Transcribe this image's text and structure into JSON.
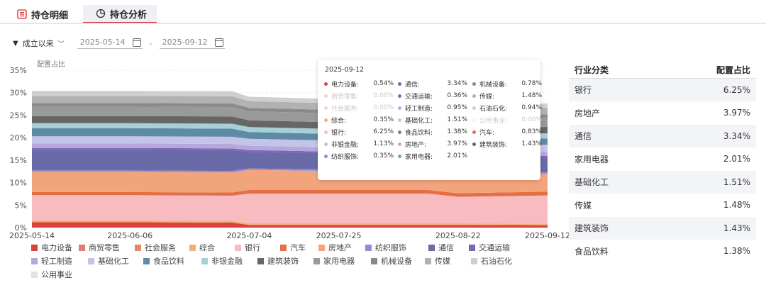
{
  "tabs": [
    {
      "label": "持仓明细",
      "icon": "list-icon"
    },
    {
      "label": "持仓分析",
      "icon": "pie-chart-icon"
    }
  ],
  "filters": {
    "range_label": "成立以来",
    "start_date": "2025-05-14",
    "date_separator": "-",
    "end_date": "2025-09-12"
  },
  "chart_data": {
    "type": "area",
    "stacked": true,
    "ylabel": "配置占比",
    "ylim": [
      0,
      35
    ],
    "yticks": [
      "0%",
      "5%",
      "10%",
      "15%",
      "20%",
      "25%",
      "30%",
      "35%"
    ],
    "xticks": [
      "2025-05-14",
      "2025-06-06",
      "2025-07-04",
      "2025-07-25",
      "2025-08-22",
      "2025-09-12"
    ],
    "x": [
      "2025-05-14",
      "2025-06-06",
      "2025-06-30",
      "2025-07-04",
      "2025-07-25",
      "2025-08-15",
      "2025-08-22",
      "2025-09-12"
    ],
    "grid": true,
    "legend_position": "bottom",
    "series": [
      {
        "name": "电力设备",
        "color": "#d9433f",
        "values": [
          1.2,
          1.2,
          1.1,
          0.6,
          0.6,
          0.6,
          0.6,
          0.54
        ]
      },
      {
        "name": "商贸零售",
        "color": "#e07b78",
        "values": [
          0,
          0,
          0,
          0,
          0,
          0,
          0,
          0
        ]
      },
      {
        "name": "社会服务",
        "color": "#e58a5f",
        "values": [
          0,
          0,
          0,
          0,
          0,
          0,
          0,
          0
        ]
      },
      {
        "name": "综合",
        "color": "#f1b07a",
        "values": [
          0.4,
          0.4,
          0.4,
          0.35,
          0.35,
          0.35,
          0.35,
          0.35
        ]
      },
      {
        "name": "银行",
        "color": "#f8bcc0",
        "values": [
          5.6,
          5.6,
          5.6,
          6.6,
          6.6,
          6.6,
          5.9,
          6.25
        ]
      },
      {
        "name": "汽车",
        "color": "#e56f45",
        "values": [
          0.7,
          0.7,
          0.7,
          0.8,
          0.8,
          0.8,
          0.8,
          0.83
        ]
      },
      {
        "name": "房地产",
        "color": "#f2a57c",
        "values": [
          4.5,
          4.5,
          4.5,
          4.5,
          4.2,
          4.2,
          4.1,
          3.97
        ]
      },
      {
        "name": "纺织服饰",
        "color": "#8f8cd6",
        "values": [
          0.3,
          0.3,
          0.3,
          0.3,
          0.35,
          0.35,
          0.35,
          0.35
        ]
      },
      {
        "name": "通信",
        "color": "#6b6aa8",
        "values": [
          4.6,
          4.6,
          4.6,
          3.7,
          3.6,
          3.5,
          3.4,
          3.34
        ]
      },
      {
        "name": "交通运输",
        "color": "#7d66b8",
        "values": [
          0.4,
          0.4,
          0.4,
          0.4,
          0.36,
          0.36,
          0.36,
          0.36
        ]
      },
      {
        "name": "轻工制造",
        "color": "#b8a7dd",
        "values": [
          1,
          1,
          1,
          0.95,
          0.95,
          0.95,
          0.95,
          0.95
        ]
      },
      {
        "name": "基础化工",
        "color": "#c4c4e8",
        "values": [
          1.6,
          1.6,
          1.6,
          1.55,
          1.52,
          1.52,
          1.51,
          1.51
        ]
      },
      {
        "name": "食品饮料",
        "color": "#5d8aa4",
        "values": [
          1.8,
          1.8,
          1.8,
          1.5,
          1.45,
          1.4,
          1.38,
          1.38
        ]
      },
      {
        "name": "非银金融",
        "color": "#a9cfd6",
        "values": [
          1.1,
          1.1,
          1.1,
          1.1,
          1.13,
          1.13,
          1.13,
          1.13
        ]
      },
      {
        "name": "建筑装饰",
        "color": "#666666",
        "values": [
          1.6,
          1.6,
          1.6,
          1.5,
          1.45,
          1.43,
          1.43,
          1.43
        ]
      },
      {
        "name": "家用电器",
        "color": "#9a9a9a",
        "values": [
          2.1,
          2.1,
          2.1,
          2,
          2,
          2.01,
          2.01,
          2.01
        ]
      },
      {
        "name": "机械设备",
        "color": "#8a8a8a",
        "values": [
          0.8,
          0.8,
          0.8,
          0.78,
          0.78,
          0.78,
          0.78,
          0.78
        ]
      },
      {
        "name": "传媒",
        "color": "#b2b2b2",
        "values": [
          1.6,
          1.6,
          1.6,
          1.5,
          1.48,
          1.48,
          1.48,
          1.48
        ]
      },
      {
        "name": "石油石化",
        "color": "#cfcfcf",
        "values": [
          1.1,
          1.1,
          1.1,
          0.95,
          0.94,
          0.94,
          0.94,
          0.94
        ]
      },
      {
        "name": "公用事业",
        "color": "#e2e2e2",
        "values": [
          0,
          0,
          0,
          0,
          0,
          0,
          0,
          0
        ]
      }
    ]
  },
  "tooltip": {
    "date": "2025-09-12",
    "items": [
      {
        "name": "电力设备:",
        "value": "0.54%",
        "color": "#d9433f",
        "faded": false
      },
      {
        "name": "通信:",
        "value": "3.34%",
        "color": "#6b6aa8",
        "faded": false
      },
      {
        "name": "机械设备:",
        "value": "0.78%",
        "color": "#8a8a8a",
        "faded": false
      },
      {
        "name": "商贸零售:",
        "value": "0.00%",
        "color": "#e07b78",
        "faded": true
      },
      {
        "name": "交通运输:",
        "value": "0.36%",
        "color": "#7d66b8",
        "faded": false
      },
      {
        "name": "传媒:",
        "value": "1.48%",
        "color": "#b2b2b2",
        "faded": false
      },
      {
        "name": "社会服务:",
        "value": "0.00%",
        "color": "#e58a5f",
        "faded": true
      },
      {
        "name": "轻工制造:",
        "value": "0.95%",
        "color": "#b8a7dd",
        "faded": false
      },
      {
        "name": "石油石化:",
        "value": "0.94%",
        "color": "#cfcfcf",
        "faded": false
      },
      {
        "name": "综合:",
        "value": "0.35%",
        "color": "#f1b07a",
        "faded": false
      },
      {
        "name": "基础化工:",
        "value": "1.51%",
        "color": "#c4c4e8",
        "faded": false
      },
      {
        "name": "公用事业:",
        "value": "0.00%",
        "color": "#e2e2e2",
        "faded": true
      },
      {
        "name": "银行:",
        "value": "6.25%",
        "color": "#f8bcc0",
        "faded": false
      },
      {
        "name": "食品饮料:",
        "value": "1.38%",
        "color": "#5d8aa4",
        "faded": false
      },
      {
        "name": "汽车:",
        "value": "0.83%",
        "color": "#e56f45",
        "faded": false
      },
      {
        "name": "非银金融:",
        "value": "1.13%",
        "color": "#a9cfd6",
        "faded": false
      },
      {
        "name": "房地产:",
        "value": "3.97%",
        "color": "#f2a57c",
        "faded": false
      },
      {
        "name": "建筑装饰:",
        "value": "1.43%",
        "color": "#666666",
        "faded": false
      },
      {
        "name": "纺织服饰:",
        "value": "0.35%",
        "color": "#8f8cd6",
        "faded": false
      },
      {
        "name": "家用电器:",
        "value": "2.01%",
        "color": "#9a9a9a",
        "faded": false
      }
    ]
  },
  "table": {
    "header": {
      "category": "行业分类",
      "ratio": "配置占比"
    },
    "rows": [
      {
        "category": "银行",
        "ratio": "6.25%"
      },
      {
        "category": "房地产",
        "ratio": "3.97%"
      },
      {
        "category": "通信",
        "ratio": "3.34%"
      },
      {
        "category": "家用电器",
        "ratio": "2.01%"
      },
      {
        "category": "基础化工",
        "ratio": "1.51%"
      },
      {
        "category": "传媒",
        "ratio": "1.48%"
      },
      {
        "category": "建筑装饰",
        "ratio": "1.43%"
      },
      {
        "category": "食品饮料",
        "ratio": "1.38%"
      }
    ]
  }
}
